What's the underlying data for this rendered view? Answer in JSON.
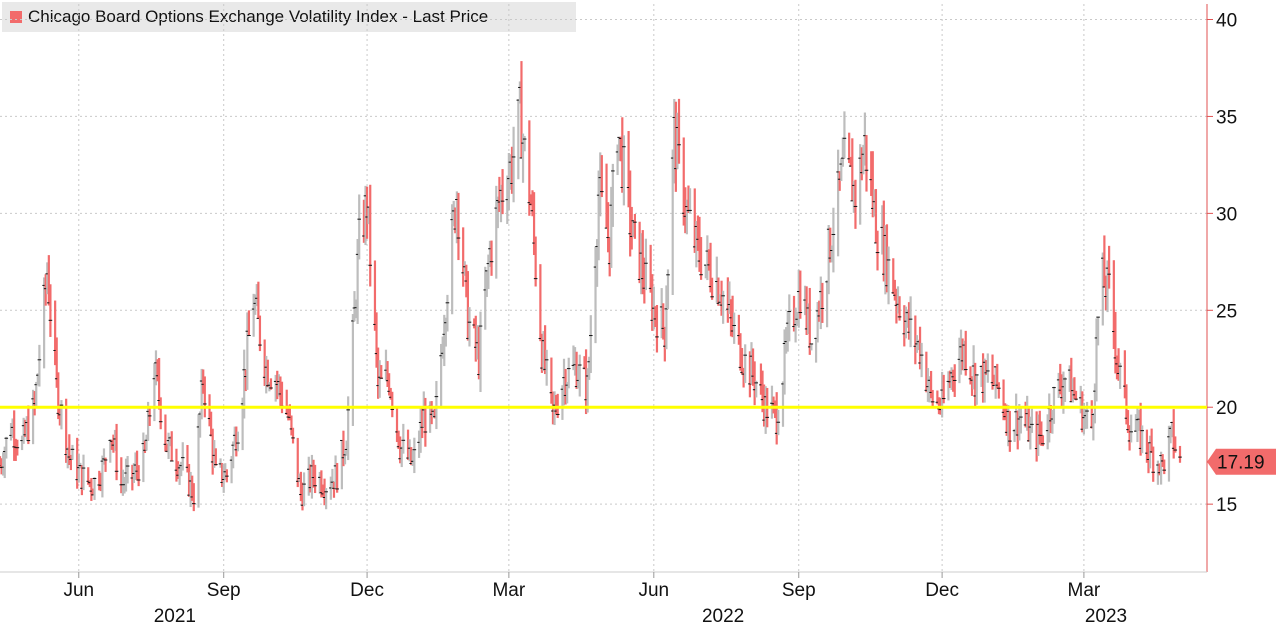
{
  "chart_data": {
    "type": "ohlc",
    "title": "",
    "legend": [
      {
        "label": "Chicago Board Options Exchange Volatility Index - Last Price",
        "color": "#f26b6b"
      }
    ],
    "x_range": [
      "2021-04-12",
      "2023-05-01"
    ],
    "ylim": [
      11.5,
      40.8
    ],
    "y_ticks": [
      15,
      20,
      25,
      30,
      35,
      40
    ],
    "x_month_ticks": [
      {
        "label": "Jun",
        "date": "2021-06-01"
      },
      {
        "label": "Sep",
        "date": "2021-09-01"
      },
      {
        "label": "Dec",
        "date": "2021-12-01"
      },
      {
        "label": "Mar",
        "date": "2022-03-01"
      },
      {
        "label": "Jun",
        "date": "2022-06-01"
      },
      {
        "label": "Sep",
        "date": "2022-09-01"
      },
      {
        "label": "Dec",
        "date": "2022-12-01"
      },
      {
        "label": "Mar",
        "date": "2023-03-01"
      }
    ],
    "x_year_labels": [
      {
        "label": "2021",
        "date": "2021-08-01"
      },
      {
        "label": "2022",
        "date": "2022-07-15"
      },
      {
        "label": "2023",
        "date": "2023-03-15"
      }
    ],
    "reference_line": {
      "value": 20,
      "color": "#ffff00"
    },
    "last_price": {
      "label": "17.19",
      "value": 17.19
    },
    "up_color": "#bdbdbd",
    "down_color": "#f26b6b",
    "grid": true,
    "y_axis_side": "right",
    "anchors": [
      [
        "2021-04-12",
        17.0
      ],
      [
        "2021-04-19",
        19.0
      ],
      [
        "2021-04-26",
        18.0
      ],
      [
        "2021-05-04",
        20.0
      ],
      [
        "2021-05-12",
        27.0
      ],
      [
        "2021-05-18",
        21.0
      ],
      [
        "2021-05-26",
        17.5
      ],
      [
        "2021-06-02",
        16.5
      ],
      [
        "2021-06-10",
        16.0
      ],
      [
        "2021-06-17",
        17.0
      ],
      [
        "2021-06-21",
        19.0
      ],
      [
        "2021-06-28",
        16.0
      ],
      [
        "2021-07-06",
        16.5
      ],
      [
        "2021-07-13",
        17.5
      ],
      [
        "2021-07-19",
        22.0
      ],
      [
        "2021-07-27",
        18.0
      ],
      [
        "2021-08-05",
        17.0
      ],
      [
        "2021-08-13",
        15.5
      ],
      [
        "2021-08-19",
        21.5
      ],
      [
        "2021-08-27",
        16.5
      ],
      [
        "2021-09-03",
        16.5
      ],
      [
        "2021-09-10",
        19.0
      ],
      [
        "2021-09-20",
        25.5
      ],
      [
        "2021-09-28",
        22.0
      ],
      [
        "2021-10-04",
        21.5
      ],
      [
        "2021-10-12",
        19.5
      ],
      [
        "2021-10-20",
        15.5
      ],
      [
        "2021-10-28",
        16.5
      ],
      [
        "2021-11-05",
        16.0
      ],
      [
        "2021-11-12",
        16.5
      ],
      [
        "2021-11-18",
        18.5
      ],
      [
        "2021-11-26",
        28.5
      ],
      [
        "2021-12-01",
        30.5
      ],
      [
        "2021-12-08",
        21.0
      ],
      [
        "2021-12-15",
        21.5
      ],
      [
        "2021-12-22",
        18.0
      ],
      [
        "2021-12-30",
        17.0
      ],
      [
        "2022-01-06",
        19.5
      ],
      [
        "2022-01-13",
        19.0
      ],
      [
        "2022-01-20",
        25.5
      ],
      [
        "2022-01-27",
        31.0
      ],
      [
        "2022-02-03",
        24.5
      ],
      [
        "2022-02-10",
        22.5
      ],
      [
        "2022-02-17",
        28.0
      ],
      [
        "2022-02-24",
        31.0
      ],
      [
        "2022-03-03",
        32.5
      ],
      [
        "2022-03-08",
        35.0
      ],
      [
        "2022-03-15",
        30.5
      ],
      [
        "2022-03-22",
        23.0
      ],
      [
        "2022-03-29",
        19.5
      ],
      [
        "2022-04-05",
        21.5
      ],
      [
        "2022-04-13",
        22.0
      ],
      [
        "2022-04-20",
        21.0
      ],
      [
        "2022-04-27",
        31.0
      ],
      [
        "2022-05-04",
        28.5
      ],
      [
        "2022-05-09",
        34.5
      ],
      [
        "2022-05-18",
        29.0
      ],
      [
        "2022-05-25",
        27.0
      ],
      [
        "2022-06-01",
        25.0
      ],
      [
        "2022-06-08",
        24.0
      ],
      [
        "2022-06-14",
        34.0
      ],
      [
        "2022-06-22",
        30.0
      ],
      [
        "2022-06-29",
        28.0
      ],
      [
        "2022-07-07",
        27.0
      ],
      [
        "2022-07-14",
        26.0
      ],
      [
        "2022-07-21",
        24.0
      ],
      [
        "2022-07-28",
        22.5
      ],
      [
        "2022-08-04",
        21.5
      ],
      [
        "2022-08-11",
        20.0
      ],
      [
        "2022-08-18",
        19.5
      ],
      [
        "2022-08-26",
        24.0
      ],
      [
        "2022-09-02",
        26.0
      ],
      [
        "2022-09-09",
        23.5
      ],
      [
        "2022-09-16",
        26.0
      ],
      [
        "2022-09-23",
        29.5
      ],
      [
        "2022-09-30",
        32.5
      ],
      [
        "2022-10-07",
        31.0
      ],
      [
        "2022-10-13",
        33.5
      ],
      [
        "2022-10-20",
        29.5
      ],
      [
        "2022-10-27",
        27.5
      ],
      [
        "2022-11-03",
        25.5
      ],
      [
        "2022-11-10",
        24.0
      ],
      [
        "2022-11-17",
        23.0
      ],
      [
        "2022-11-24",
        20.5
      ],
      [
        "2022-12-01",
        20.0
      ],
      [
        "2022-12-08",
        22.0
      ],
      [
        "2022-12-15",
        23.0
      ],
      [
        "2022-12-22",
        21.5
      ],
      [
        "2022-12-30",
        21.5
      ],
      [
        "2023-01-06",
        21.0
      ],
      [
        "2023-01-13",
        19.0
      ],
      [
        "2023-01-20",
        19.5
      ],
      [
        "2023-01-27",
        18.5
      ],
      [
        "2023-02-03",
        18.5
      ],
      [
        "2023-02-10",
        20.5
      ],
      [
        "2023-02-17",
        21.5
      ],
      [
        "2023-02-24",
        20.5
      ],
      [
        "2023-03-01",
        19.5
      ],
      [
        "2023-03-06",
        19.0
      ],
      [
        "2023-03-10",
        24.5
      ],
      [
        "2023-03-13",
        26.5
      ],
      [
        "2023-03-17",
        26.0
      ],
      [
        "2023-03-23",
        22.0
      ],
      [
        "2023-03-30",
        19.0
      ],
      [
        "2023-04-06",
        18.5
      ],
      [
        "2023-04-13",
        17.5
      ],
      [
        "2023-04-20",
        17.0
      ],
      [
        "2023-04-26",
        18.5
      ],
      [
        "2023-05-01",
        17.19
      ]
    ]
  }
}
